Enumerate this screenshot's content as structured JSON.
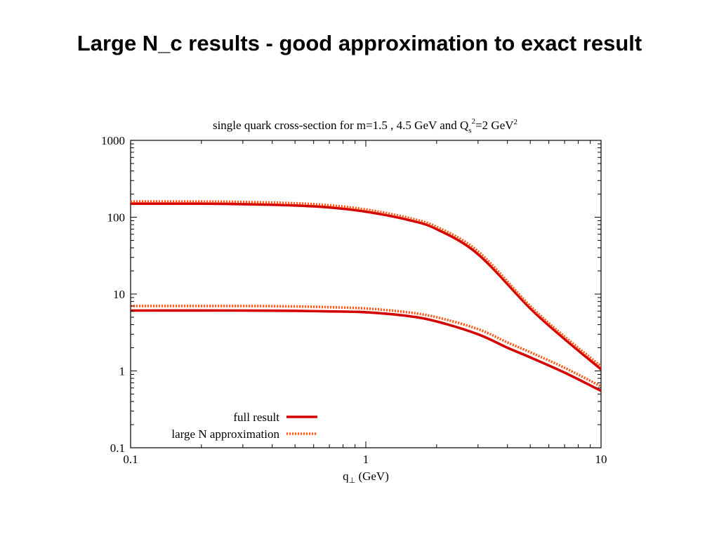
{
  "slide": {
    "title": "Large N_c results -  good approximation to exact result"
  },
  "chart_data": {
    "type": "line",
    "title_parts": {
      "main": "single quark cross-section for m=1.5 , 4.5 GeV and Q",
      "q_sub": "s",
      "q_sup": "2",
      "eq": "=2 GeV",
      "unit_sup": "2"
    },
    "xlabel_parts": {
      "q": "q",
      "perp": "⊥",
      "rest": " (GeV)"
    },
    "xscale": "log",
    "yscale": "log",
    "xlim": [
      0.1,
      10
    ],
    "ylim": [
      0.1,
      1000
    ],
    "xticks": [
      0.1,
      1,
      10
    ],
    "xtick_labels": [
      "0.1",
      "1",
      "10"
    ],
    "yticks": [
      0.1,
      1,
      10,
      100,
      1000
    ],
    "ytick_labels": [
      "0.1",
      "1",
      "10",
      "100",
      "1000"
    ],
    "grid": false,
    "legend_position": "bottom-left",
    "colors": {
      "full": "#d40000",
      "approx": "#ff5a1a"
    },
    "legend": [
      {
        "key": "full",
        "label": "full result"
      },
      {
        "key": "approx",
        "label": "large N approximation"
      }
    ],
    "curves": [
      {
        "key": "full",
        "mass": "1.5",
        "x": [
          0.1,
          0.2,
          0.3,
          0.5,
          0.7,
          1.0,
          1.5,
          2.0,
          3.0,
          5.0,
          7.0,
          10.0
        ],
        "y": [
          150,
          150,
          148,
          142,
          134,
          118,
          93,
          70,
          33,
          6.5,
          2.6,
          1.05
        ]
      },
      {
        "key": "approx",
        "mass": "1.5",
        "x": [
          0.1,
          0.2,
          0.3,
          0.5,
          0.7,
          1.0,
          1.5,
          2.0,
          3.0,
          5.0,
          7.0,
          10.0
        ],
        "y": [
          160,
          160,
          158,
          152,
          143,
          126,
          99,
          75,
          36,
          7.0,
          2.8,
          1.15
        ]
      },
      {
        "key": "full",
        "mass": "4.5",
        "x": [
          0.1,
          0.3,
          0.5,
          0.7,
          1.0,
          1.5,
          2.0,
          3.0,
          4.0,
          5.0,
          7.0,
          10.0
        ],
        "y": [
          6.1,
          6.1,
          6.05,
          5.95,
          5.8,
          5.2,
          4.4,
          3.0,
          2.0,
          1.5,
          0.95,
          0.55
        ]
      },
      {
        "key": "approx",
        "mass": "4.5",
        "x": [
          0.1,
          0.3,
          0.5,
          0.7,
          1.0,
          1.5,
          2.0,
          3.0,
          4.0,
          5.0,
          7.0,
          10.0
        ],
        "y": [
          7.0,
          7.0,
          6.9,
          6.75,
          6.5,
          5.8,
          5.0,
          3.5,
          2.35,
          1.75,
          1.1,
          0.63
        ]
      }
    ]
  }
}
